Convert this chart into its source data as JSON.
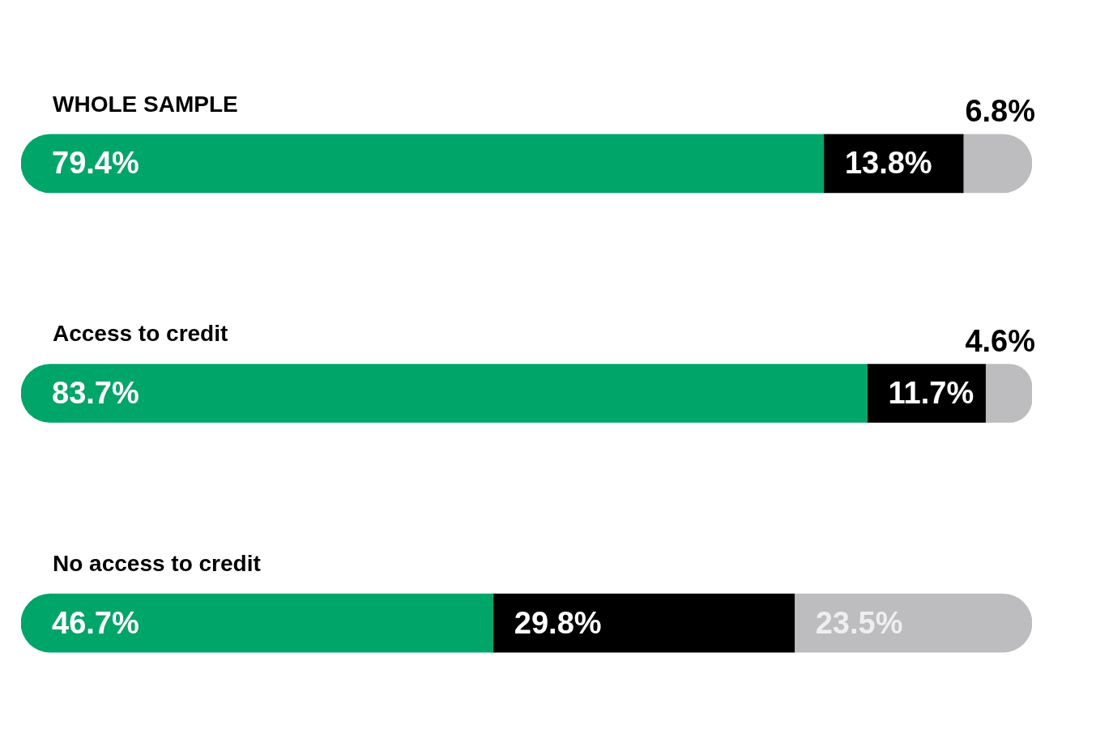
{
  "chart_data": {
    "type": "bar",
    "orientation": "horizontal",
    "stacked": true,
    "categories": [
      "WHOLE SAMPLE",
      "Access to credit",
      "No access to credit"
    ],
    "series": [
      {
        "color": "#00a56a",
        "values": [
          79.4,
          83.7,
          46.7
        ],
        "value_labels": [
          "79.4%",
          "83.7%",
          "46.7%"
        ]
      },
      {
        "color": "#000000",
        "values": [
          13.8,
          11.7,
          29.8
        ],
        "value_labels": [
          "13.8%",
          "11.7%",
          "29.8%"
        ]
      },
      {
        "color": "#bdbdbf",
        "values": [
          6.8,
          4.6,
          23.5
        ],
        "value_labels": [
          "6.8%",
          "4.6%",
          "23.5%"
        ]
      }
    ],
    "tick_labels": "y",
    "legend": false
  }
}
